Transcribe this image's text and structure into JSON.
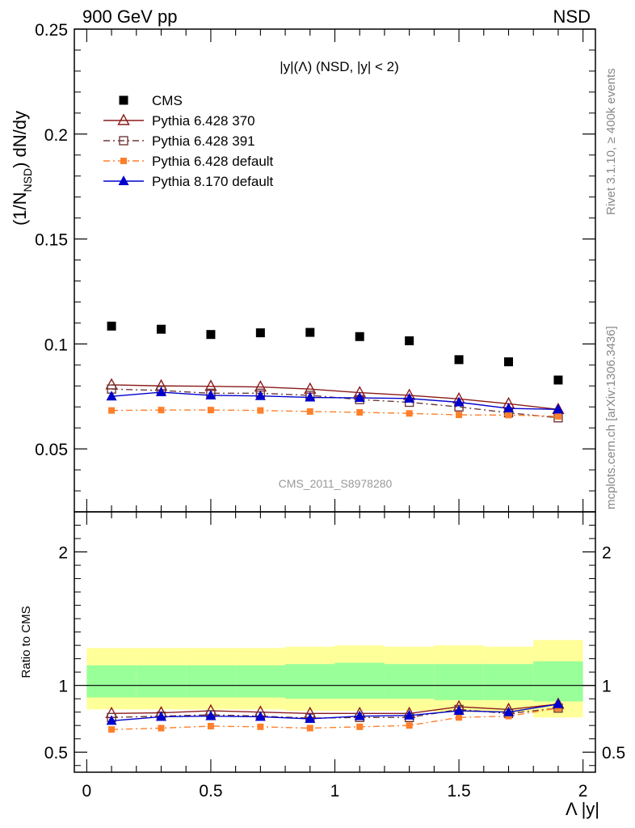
{
  "header": {
    "left": "900 GeV pp",
    "right": "NSD"
  },
  "side_labels": {
    "rivet": "Rivet 3.1.10, ≥ 400k events",
    "mcplots": "mcplots.cern.ch [arXiv:1306.3436]"
  },
  "watermark": "CMS_2011_S8978280",
  "colors": {
    "cms": "#000000",
    "p370": "#8b1a1a",
    "p391": "#6e3a3a",
    "p6def": "#ff7f2a",
    "p8def": "#0000cc",
    "band_outer": "#ffff99",
    "band_inner": "#99ff99"
  },
  "chart_data": [
    {
      "type": "scatter",
      "panel": "main",
      "title": "|y|(Λ) (NSD, |y| < 2)",
      "ylabel_parts": [
        "(1/N",
        "NSD",
        ") dN/dy"
      ],
      "ylim": [
        0.02,
        0.25
      ],
      "yticks": [
        0.05,
        0.1,
        0.15,
        0.2,
        0.25
      ],
      "ytick_labels": [
        "0.05",
        "0.1",
        "0.15",
        "0.2",
        "0.25"
      ],
      "xlim": [
        -0.05,
        2.05
      ],
      "x": [
        0.1,
        0.3,
        0.5,
        0.7,
        0.9,
        1.1,
        1.3,
        1.5,
        1.7,
        1.9
      ],
      "legend_position": "top-left",
      "series": [
        {
          "name": "CMS",
          "key": "cms",
          "marker": "square",
          "line": "none",
          "values": [
            0.1085,
            0.107,
            0.1045,
            0.1053,
            0.1055,
            0.1035,
            0.1015,
            0.0925,
            0.0915,
            0.0828
          ]
        },
        {
          "name": "Pythia 6.428 370",
          "key": "p370",
          "marker": "triangle-open",
          "line": "solid",
          "values": [
            0.0805,
            0.08,
            0.0798,
            0.0795,
            0.0785,
            0.0768,
            0.0755,
            0.0738,
            0.0715,
            0.0688
          ]
        },
        {
          "name": "Pythia 6.428 391",
          "key": "p391",
          "marker": "square-open",
          "line": "dashdot",
          "values": [
            0.0785,
            0.0778,
            0.0765,
            0.0765,
            0.0755,
            0.0735,
            0.0722,
            0.07,
            0.0672,
            0.0648
          ]
        },
        {
          "name": "Pythia 6.428 default",
          "key": "p6def",
          "marker": "square-small",
          "line": "dashdot",
          "values": [
            0.0683,
            0.0685,
            0.0685,
            0.0683,
            0.0678,
            0.0674,
            0.0669,
            0.0662,
            0.0661,
            0.0655
          ]
        },
        {
          "name": "Pythia 8.170 default",
          "key": "p8def",
          "marker": "triangle",
          "line": "solid",
          "values": [
            0.075,
            0.077,
            0.0755,
            0.0752,
            0.0745,
            0.0743,
            0.074,
            0.0722,
            0.0693,
            0.0688
          ]
        }
      ]
    },
    {
      "type": "line",
      "panel": "ratio",
      "ylabel": "Ratio to CMS",
      "xlabel": "Λ |y|",
      "ylim": [
        0.35,
        2.3
      ],
      "yticks": [
        0.5,
        1,
        2
      ],
      "ytick_labels": [
        "0.5",
        "1",
        "2"
      ],
      "xlim": [
        -0.05,
        2.05
      ],
      "xticks": [
        0,
        0.5,
        1,
        1.5,
        2
      ],
      "xtick_labels": [
        "0",
        "0.5",
        "1",
        "1.5",
        "2"
      ],
      "x": [
        0.1,
        0.3,
        0.5,
        0.7,
        0.9,
        1.1,
        1.3,
        1.5,
        1.7,
        1.9
      ],
      "bin_edges": [
        0.0,
        0.2,
        0.4,
        0.6,
        0.8,
        1.0,
        1.2,
        1.4,
        1.6,
        1.8,
        2.0
      ],
      "band_outer": [
        [
          0.82,
          1.28
        ],
        [
          0.82,
          1.28
        ],
        [
          0.82,
          1.28
        ],
        [
          0.82,
          1.28
        ],
        [
          0.81,
          1.29
        ],
        [
          0.81,
          1.3
        ],
        [
          0.81,
          1.29
        ],
        [
          0.8,
          1.3
        ],
        [
          0.8,
          1.29
        ],
        [
          0.76,
          1.34
        ]
      ],
      "band_inner": [
        [
          0.91,
          1.15
        ],
        [
          0.91,
          1.15
        ],
        [
          0.91,
          1.15
        ],
        [
          0.91,
          1.15
        ],
        [
          0.9,
          1.16
        ],
        [
          0.9,
          1.17
        ],
        [
          0.9,
          1.16
        ],
        [
          0.89,
          1.16
        ],
        [
          0.89,
          1.16
        ],
        [
          0.88,
          1.18
        ]
      ],
      "series": [
        {
          "name": "Pythia 6.428 370",
          "key": "p370",
          "marker": "triangle-open",
          "line": "solid",
          "values": [
            0.79,
            0.795,
            0.81,
            0.8,
            0.79,
            0.79,
            0.79,
            0.84,
            0.82,
            0.86
          ]
        },
        {
          "name": "Pythia 6.428 391",
          "key": "p391",
          "marker": "square-open",
          "line": "dashdot",
          "values": [
            0.76,
            0.77,
            0.78,
            0.77,
            0.755,
            0.76,
            0.76,
            0.82,
            0.79,
            0.83
          ]
        },
        {
          "name": "Pythia 6.428 default",
          "key": "p6def",
          "marker": "square-small",
          "line": "dashdot",
          "values": [
            0.67,
            0.68,
            0.695,
            0.69,
            0.68,
            0.69,
            0.7,
            0.76,
            0.77,
            0.83
          ]
        },
        {
          "name": "Pythia 8.170 default",
          "key": "p8def",
          "marker": "triangle",
          "line": "solid",
          "values": [
            0.735,
            0.765,
            0.77,
            0.765,
            0.75,
            0.77,
            0.775,
            0.81,
            0.8,
            0.86
          ]
        }
      ]
    }
  ]
}
